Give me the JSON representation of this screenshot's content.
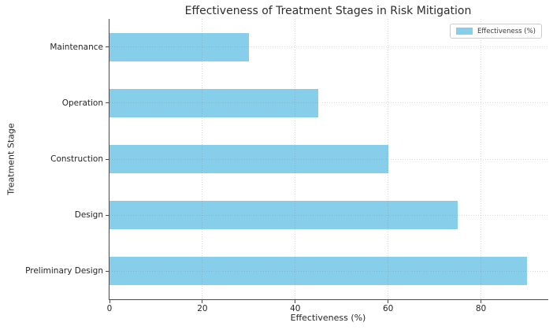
{
  "chart_data": {
    "type": "bar",
    "orientation": "horizontal",
    "title": "Effectiveness of Treatment Stages in Risk Mitigation",
    "categories": [
      "Maintenance",
      "Operation",
      "Construction",
      "Design",
      "Preliminary Design"
    ],
    "values": [
      30,
      45,
      60,
      75,
      90
    ],
    "xlabel": "Effectiveness (%)",
    "ylabel": "Treatment Stage",
    "xlim": [
      0,
      94.5
    ],
    "xticks": [
      0,
      20,
      40,
      60,
      80
    ],
    "grid": true,
    "grid_style": "dotted",
    "bar_height_fraction": 0.5,
    "legend": {
      "position": "upper-right",
      "labels": [
        "Effectiveness (%)"
      ]
    },
    "colors": {
      "bar": "#87CEEB",
      "grid": "#d9d9d9",
      "axis": "#4a4a4a",
      "text": "#262626",
      "legend_border": "#cccccc",
      "background": "#ffffff"
    }
  }
}
